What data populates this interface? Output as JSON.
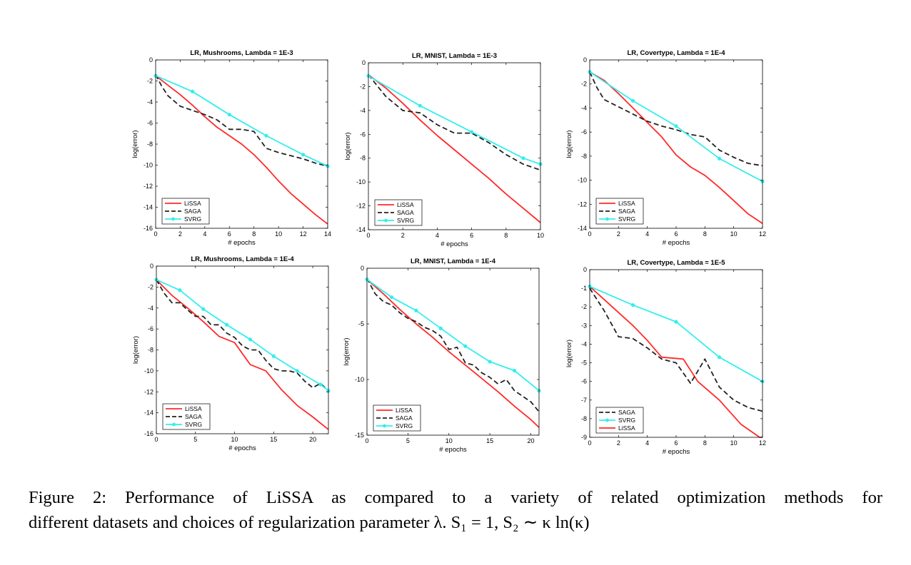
{
  "colors": {
    "LiSSA": "#ff2a2a",
    "SAGA": "#222222",
    "SVRG": "#33eeee"
  },
  "caption": {
    "line1": "Figure 2:  Performance of LiSSA as compared to a variety of related optimization methods for",
    "line2": "different datasets and choices of regularization parameter λ. S₁ = 1, S₂ ∼ κ ln(κ)"
  },
  "chart_data": [
    {
      "type": "line",
      "title": "LR, Mushrooms, Lambda = 1E-3",
      "xlabel": "# epochs",
      "ylabel": "log(error)",
      "xlim": [
        0,
        14
      ],
      "ylim": [
        -16,
        0
      ],
      "xticks": [
        0,
        2,
        4,
        6,
        8,
        10,
        12,
        14
      ],
      "yticks": [
        0,
        -2,
        -4,
        -6,
        -8,
        -10,
        -12,
        -14,
        -16
      ],
      "legend": [
        "LiSSA",
        "SAGA",
        "SVRG"
      ],
      "legend_position": "bottom-left",
      "series": [
        {
          "name": "LiSSA",
          "x": [
            0,
            1,
            2,
            3,
            4,
            5,
            6,
            7,
            8,
            9,
            10,
            11,
            12,
            13,
            14
          ],
          "y": [
            -1.5,
            -2.4,
            -3.3,
            -4.3,
            -5.4,
            -6.4,
            -7.2,
            -8.0,
            -9.0,
            -10.2,
            -11.5,
            -12.7,
            -13.7,
            -14.7,
            -15.6
          ]
        },
        {
          "name": "SAGA",
          "x": [
            0,
            0.5,
            1,
            2,
            3,
            4,
            5,
            6,
            7,
            8,
            9,
            10,
            11,
            12,
            13,
            14
          ],
          "y": [
            -1.4,
            -2.5,
            -3.4,
            -4.4,
            -4.8,
            -5.2,
            -5.7,
            -6.6,
            -6.6,
            -6.8,
            -8.4,
            -8.8,
            -9.1,
            -9.4,
            -9.8,
            -10.1
          ]
        },
        {
          "name": "SVRG",
          "x": [
            0,
            3,
            6,
            9,
            12,
            14
          ],
          "y": [
            -1.5,
            -3.0,
            -5.2,
            -7.2,
            -9.0,
            -10.1
          ],
          "markers": true
        }
      ]
    },
    {
      "type": "line",
      "title": "LR, MNIST, Lambda = 1E-3",
      "xlabel": "# epochs",
      "ylabel": "log(error)",
      "xlim": [
        0,
        10
      ],
      "ylim": [
        -14,
        0
      ],
      "xticks": [
        0,
        2,
        4,
        6,
        8,
        10
      ],
      "yticks": [
        0,
        -2,
        -4,
        -6,
        -8,
        -10,
        -12,
        -14
      ],
      "legend": [
        "LiSSA",
        "SAGA",
        "SVRG"
      ],
      "legend_position": "bottom-left",
      "series": [
        {
          "name": "LiSSA",
          "x": [
            0,
            1,
            2,
            3,
            4,
            5,
            6,
            7,
            8,
            9,
            10
          ],
          "y": [
            -1.0,
            -2.1,
            -3.4,
            -4.8,
            -6.1,
            -7.3,
            -8.5,
            -9.7,
            -11.0,
            -12.2,
            -13.4
          ]
        },
        {
          "name": "SAGA",
          "x": [
            0,
            0.5,
            1,
            2,
            3,
            4,
            5,
            6,
            7,
            8,
            9,
            10
          ],
          "y": [
            -1.0,
            -1.9,
            -2.8,
            -4.0,
            -4.2,
            -5.2,
            -5.9,
            -5.9,
            -6.7,
            -7.7,
            -8.5,
            -9.0
          ]
        },
        {
          "name": "SVRG",
          "x": [
            0,
            3,
            6,
            9,
            10
          ],
          "y": [
            -1.1,
            -3.6,
            -5.8,
            -8.0,
            -8.5
          ],
          "markers": true
        }
      ]
    },
    {
      "type": "line",
      "title": "LR, Covertype, Lambda = 1E-4",
      "xlabel": "# epochs",
      "ylabel": "log(error)",
      "xlim": [
        0,
        12
      ],
      "ylim": [
        -14,
        0
      ],
      "xticks": [
        0,
        2,
        4,
        6,
        8,
        10,
        12
      ],
      "yticks": [
        0,
        -2,
        -4,
        -6,
        -8,
        -10,
        -12,
        -14
      ],
      "legend": [
        "LiSSA",
        "SAGA",
        "SVRG"
      ],
      "legend_position": "bottom-left",
      "series": [
        {
          "name": "LiSSA",
          "x": [
            0,
            1,
            2,
            3,
            4,
            5,
            6,
            7,
            8,
            9,
            10,
            11,
            12
          ],
          "y": [
            -1.0,
            -1.7,
            -2.8,
            -4.0,
            -5.2,
            -6.4,
            -7.9,
            -8.9,
            -9.6,
            -10.6,
            -11.7,
            -12.8,
            -13.6
          ]
        },
        {
          "name": "SAGA",
          "x": [
            0,
            0.5,
            1,
            2,
            3,
            4,
            5,
            6,
            7,
            8,
            9,
            10,
            11,
            12
          ],
          "y": [
            -1.0,
            -2.3,
            -3.3,
            -3.9,
            -4.5,
            -5.1,
            -5.5,
            -5.8,
            -6.2,
            -6.4,
            -7.5,
            -8.1,
            -8.6,
            -8.8
          ]
        },
        {
          "name": "SVRG",
          "x": [
            0,
            3,
            6,
            9,
            12
          ],
          "y": [
            -1.0,
            -3.4,
            -5.5,
            -8.2,
            -10.1
          ],
          "markers": true
        }
      ]
    },
    {
      "type": "line",
      "title": "LR, Mushrooms, Lambda = 1E-4",
      "xlabel": "# epochs",
      "ylabel": "log(error)",
      "xlim": [
        0,
        22
      ],
      "ylim": [
        -16,
        0
      ],
      "xticks": [
        0,
        5,
        10,
        15,
        20
      ],
      "yticks": [
        0,
        -2,
        -4,
        -6,
        -8,
        -10,
        -12,
        -14,
        -16
      ],
      "legend": [
        "LiSSA",
        "SAGA",
        "SVRG"
      ],
      "legend_position": "bottom-left",
      "series": [
        {
          "name": "LiSSA",
          "x": [
            0,
            2,
            4,
            6,
            8,
            10,
            12,
            14,
            16,
            18,
            20,
            22
          ],
          "y": [
            -1.3,
            -2.8,
            -4.0,
            -5.3,
            -6.7,
            -7.3,
            -9.4,
            -10.0,
            -11.8,
            -13.3,
            -14.4,
            -15.6
          ]
        },
        {
          "name": "SAGA",
          "x": [
            0,
            1,
            2,
            3,
            4,
            5,
            6,
            7,
            8,
            9,
            10,
            11,
            12,
            13,
            14,
            15,
            16,
            17,
            18,
            19,
            20,
            21,
            22
          ],
          "y": [
            -1.3,
            -2.6,
            -3.5,
            -3.5,
            -4.2,
            -4.8,
            -4.8,
            -5.6,
            -5.6,
            -6.4,
            -6.8,
            -7.6,
            -8.0,
            -8.0,
            -9.0,
            -9.8,
            -10.0,
            -10.0,
            -10.2,
            -11.0,
            -11.6,
            -11.2,
            -11.9
          ]
        },
        {
          "name": "SVRG",
          "x": [
            0,
            3,
            6,
            9,
            12,
            15,
            18,
            21,
            22
          ],
          "y": [
            -1.3,
            -2.3,
            -4.1,
            -5.6,
            -7.0,
            -8.6,
            -10.0,
            -11.3,
            -11.9
          ],
          "markers": true
        }
      ]
    },
    {
      "type": "line",
      "title": "LR, MNIST, Lambda = 1E-4",
      "xlabel": "# epochs",
      "ylabel": "log(error)",
      "xlim": [
        0,
        21
      ],
      "ylim": [
        -15,
        0
      ],
      "xticks": [
        0,
        5,
        10,
        15,
        20
      ],
      "yticks": [
        0,
        -5,
        -10,
        -15
      ],
      "legend": [
        "LiSSA",
        "SAGA",
        "SVRG"
      ],
      "legend_position": "bottom-left",
      "series": [
        {
          "name": "LiSSA",
          "x": [
            0,
            2,
            4,
            6,
            8,
            10,
            12,
            14,
            16,
            18,
            20,
            21
          ],
          "y": [
            -1.0,
            -2.3,
            -3.7,
            -5.0,
            -6.2,
            -7.5,
            -8.7,
            -9.9,
            -11.1,
            -12.4,
            -13.6,
            -14.3
          ]
        },
        {
          "name": "SAGA",
          "x": [
            0,
            1,
            2,
            3,
            4,
            5,
            6,
            7,
            8,
            9,
            10,
            11,
            12,
            13,
            14,
            15,
            16,
            17,
            18,
            19,
            20,
            21
          ],
          "y": [
            -0.9,
            -2.3,
            -3.0,
            -3.3,
            -4.0,
            -4.5,
            -4.8,
            -5.3,
            -5.6,
            -6.1,
            -7.3,
            -7.1,
            -8.5,
            -8.7,
            -9.4,
            -9.8,
            -10.4,
            -10.0,
            -11.0,
            -11.5,
            -12.0,
            -12.9
          ]
        },
        {
          "name": "SVRG",
          "x": [
            0,
            3,
            6,
            9,
            12,
            15,
            18,
            21
          ],
          "y": [
            -1.0,
            -2.6,
            -3.8,
            -5.4,
            -7.0,
            -8.4,
            -9.2,
            -11.0
          ],
          "markers": true
        }
      ]
    },
    {
      "type": "line",
      "title": "LR, Covertype, Lambda = 1E-5",
      "xlabel": "# epochs",
      "ylabel": "log(error)",
      "xlim": [
        0,
        12
      ],
      "ylim": [
        -9,
        0
      ],
      "xticks": [
        0,
        2,
        4,
        6,
        8,
        10,
        12
      ],
      "yticks": [
        0,
        -1,
        -2,
        -3,
        -4,
        -5,
        -6,
        -7,
        -8,
        -9
      ],
      "legend": [
        "SAGA",
        "SVRG",
        "LiSSA"
      ],
      "legend_position": "bottom-left",
      "series": [
        {
          "name": "LiSSA",
          "x": [
            0,
            1,
            2,
            3,
            4,
            5,
            6.5,
            7.5,
            9,
            10.5,
            11.8,
            12
          ],
          "y": [
            -0.9,
            -1.6,
            -2.3,
            -3.0,
            -3.8,
            -4.7,
            -4.8,
            -6.0,
            -7.0,
            -8.3,
            -9.0,
            -9.0
          ]
        },
        {
          "name": "SAGA",
          "x": [
            0,
            1,
            2,
            3,
            4,
            5,
            6,
            7,
            8,
            9,
            10,
            11,
            12
          ],
          "y": [
            -1.0,
            -2.2,
            -3.6,
            -3.7,
            -4.2,
            -4.8,
            -5.0,
            -6.1,
            -4.8,
            -6.3,
            -7.0,
            -7.4,
            -7.6
          ]
        },
        {
          "name": "SVRG",
          "x": [
            0,
            3,
            6,
            9,
            12
          ],
          "y": [
            -0.9,
            -1.9,
            -2.8,
            -4.7,
            -6.0
          ],
          "markers": true
        }
      ]
    }
  ]
}
